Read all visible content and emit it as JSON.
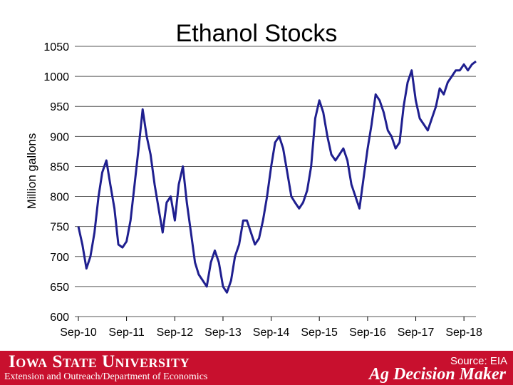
{
  "chart_data": {
    "type": "line",
    "title": "Ethanol Stocks",
    "ylabel": "Million gallons",
    "xlabel": "",
    "ylim": [
      600,
      1050
    ],
    "yticks": [
      600,
      650,
      700,
      750,
      800,
      850,
      900,
      950,
      1000,
      1050
    ],
    "xtick_labels": [
      "Sep-10",
      "Sep-11",
      "Sep-12",
      "Sep-13",
      "Sep-14",
      "Sep-15",
      "Sep-16",
      "Sep-17",
      "Sep-18"
    ],
    "grid": true,
    "line_color": "#1f1f8f",
    "series": [
      {
        "name": "",
        "x": [
          "2010-09-01",
          "2010-10-01",
          "2010-11-01",
          "2010-12-01",
          "2011-01-01",
          "2011-02-01",
          "2011-03-01",
          "2011-04-01",
          "2011-05-01",
          "2011-06-01",
          "2011-07-01",
          "2011-08-01",
          "2011-09-01",
          "2011-10-01",
          "2011-11-01",
          "2011-12-01",
          "2012-01-01",
          "2012-02-01",
          "2012-03-01",
          "2012-04-01",
          "2012-05-01",
          "2012-06-01",
          "2012-07-01",
          "2012-08-01",
          "2012-09-01",
          "2012-10-01",
          "2012-11-01",
          "2012-12-01",
          "2013-01-01",
          "2013-02-01",
          "2013-03-01",
          "2013-04-01",
          "2013-05-01",
          "2013-06-01",
          "2013-07-01",
          "2013-08-01",
          "2013-09-01",
          "2013-10-01",
          "2013-11-01",
          "2013-12-01",
          "2014-01-01",
          "2014-02-01",
          "2014-03-01",
          "2014-04-01",
          "2014-05-01",
          "2014-06-01",
          "2014-07-01",
          "2014-08-01",
          "2014-09-01",
          "2014-10-01",
          "2014-11-01",
          "2014-12-01",
          "2015-01-01",
          "2015-02-01",
          "2015-03-01",
          "2015-04-01",
          "2015-05-01",
          "2015-06-01",
          "2015-07-01",
          "2015-08-01",
          "2015-09-01",
          "2015-10-01",
          "2015-11-01",
          "2015-12-01",
          "2016-01-01",
          "2016-02-01",
          "2016-03-01",
          "2016-04-01",
          "2016-05-01",
          "2016-06-01",
          "2016-07-01",
          "2016-08-01",
          "2016-09-01",
          "2016-10-01",
          "2016-11-01",
          "2016-12-01",
          "2017-01-01",
          "2017-02-01",
          "2017-03-01",
          "2017-04-01",
          "2017-05-01",
          "2017-06-01",
          "2017-07-01",
          "2017-08-01",
          "2017-09-01",
          "2017-10-01",
          "2017-11-01",
          "2017-12-01",
          "2018-01-01",
          "2018-02-01",
          "2018-03-01",
          "2018-04-01",
          "2018-05-01",
          "2018-06-01",
          "2018-07-01",
          "2018-08-01",
          "2018-09-01",
          "2018-10-01",
          "2018-11-01",
          "2018-12-01"
        ],
        "values": [
          750,
          720,
          680,
          700,
          740,
          800,
          840,
          860,
          820,
          780,
          720,
          715,
          725,
          760,
          820,
          880,
          945,
          900,
          870,
          820,
          780,
          740,
          790,
          800,
          760,
          820,
          850,
          790,
          740,
          690,
          670,
          660,
          650,
          690,
          710,
          690,
          650,
          640,
          660,
          700,
          720,
          760,
          760,
          740,
          720,
          730,
          760,
          800,
          850,
          890,
          900,
          880,
          840,
          800,
          790,
          780,
          790,
          810,
          850,
          930,
          960,
          940,
          900,
          870,
          860,
          870,
          880,
          860,
          820,
          800,
          780,
          830,
          880,
          920,
          970,
          960,
          940,
          910,
          900,
          880,
          890,
          950,
          990,
          1010,
          960,
          930,
          920,
          910,
          930,
          950,
          980,
          970,
          990,
          1000,
          1010,
          1010,
          1020,
          1010,
          1020,
          1025
        ]
      }
    ]
  },
  "footer": {
    "university": "Iowa State University",
    "department": "Extension and Outreach/Department of Economics",
    "source": "Source: EIA",
    "brand": "Ag Decision Maker"
  },
  "colors": {
    "footer_bg": "#c8102e",
    "line": "#1f1f8f",
    "grid": "#555555"
  }
}
